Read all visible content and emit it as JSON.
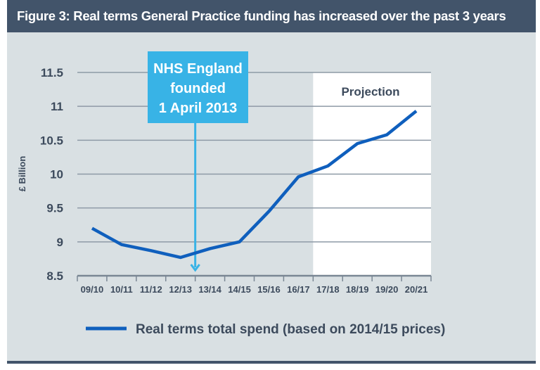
{
  "title": "Figure 3: Real terms General Practice funding has increased over the past 3 years",
  "colors": {
    "header": "#42546a",
    "background": "#d9e0e3",
    "line": "#0f5fbd",
    "callout": "#38b3e6",
    "projection": "#ffffff",
    "text": "#3c4a5c"
  },
  "chart_data": {
    "type": "line",
    "title": "Figure 3: Real terms General Practice funding has increased over the past 3 years",
    "xlabel": "",
    "ylabel": "£ Billion",
    "ylim": [
      8.5,
      11.5
    ],
    "yticks": [
      "8.5",
      "9",
      "9.5",
      "10",
      "10.5",
      "11",
      "11.5"
    ],
    "grid": true,
    "legend_position": "bottom",
    "categories": [
      "09/10",
      "10/11",
      "11/12",
      "12/13",
      "13/14",
      "14/15",
      "15/16",
      "16/17",
      "17/18",
      "18/19",
      "19/20",
      "20/21"
    ],
    "series": [
      {
        "name": "Real terms total spend (based on 2014/15 prices)",
        "values": [
          9.2,
          8.96,
          8.87,
          8.77,
          8.9,
          9.0,
          9.45,
          9.96,
          10.12,
          10.45,
          10.58,
          10.93
        ]
      }
    ],
    "annotations": {
      "callout": [
        "NHS England",
        "founded",
        "1 April 2013"
      ],
      "callout_at_tick": "13/14",
      "projection_label": "Projection",
      "projection_from": "17/18"
    }
  }
}
